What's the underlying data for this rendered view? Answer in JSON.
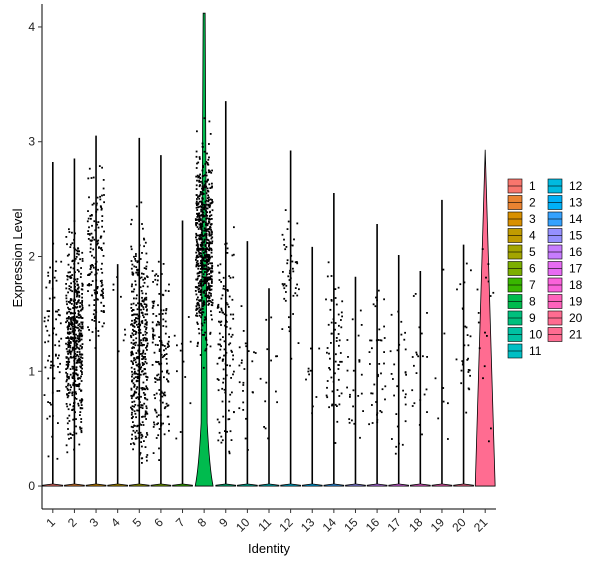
{
  "chart_data": {
    "type": "violin",
    "title": "",
    "xlabel": "Identity",
    "ylabel": "Expression Level",
    "ylim": [
      -0.2,
      4.2
    ],
    "y_ticks": [
      0,
      1,
      2,
      3,
      4
    ],
    "categories": [
      "1",
      "2",
      "3",
      "4",
      "5",
      "6",
      "7",
      "8",
      "9",
      "10",
      "11",
      "12",
      "13",
      "14",
      "15",
      "16",
      "17",
      "18",
      "19",
      "20",
      "21"
    ],
    "colors": [
      "#F8766D",
      "#EA8331",
      "#D89000",
      "#C09B00",
      "#A3A500",
      "#7CAE00",
      "#39B600",
      "#00BB4E",
      "#00BF7D",
      "#00C1A3",
      "#00BFC4",
      "#00BAE0",
      "#00B0F6",
      "#35A2FF",
      "#9590FF",
      "#C77CFF",
      "#E76BF3",
      "#FA62DB",
      "#FF62BC",
      "#FF6C91",
      "#FF6C91"
    ],
    "max_values": [
      2.82,
      2.85,
      3.05,
      1.93,
      3.03,
      2.88,
      2.31,
      4.12,
      3.35,
      2.13,
      1.72,
      2.92,
      2.08,
      2.55,
      1.82,
      2.28,
      2.01,
      1.87,
      2.49,
      2.1,
      2.93
    ],
    "legend": {
      "position": "right",
      "entries": [
        "1",
        "2",
        "3",
        "4",
        "5",
        "6",
        "7",
        "8",
        "9",
        "10",
        "11",
        "12",
        "13",
        "14",
        "15",
        "16",
        "17",
        "18",
        "19",
        "20",
        "21"
      ]
    },
    "grid": false
  }
}
